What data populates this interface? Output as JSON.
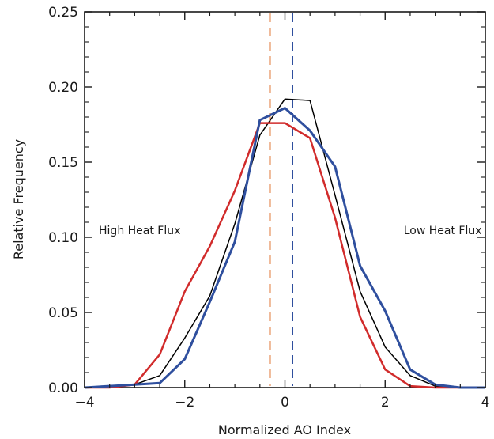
{
  "chart_data": {
    "type": "line",
    "title": "",
    "xlabel": "Normalized AO Index",
    "ylabel": "Relative Frequency",
    "xlim": [
      -4,
      4
    ],
    "ylim": [
      0,
      0.25
    ],
    "xticks": [
      -4,
      -2,
      0,
      2,
      4
    ],
    "xtick_labels": [
      "−4",
      "−2",
      "0",
      "2",
      "4"
    ],
    "yticks": [
      0.0,
      0.05,
      0.1,
      0.15,
      0.2,
      0.25
    ],
    "ytick_labels": [
      "0.00",
      "0.05",
      "0.10",
      "0.15",
      "0.20",
      "0.25"
    ],
    "grid": false,
    "x": [
      -4.0,
      -3.5,
      -3.0,
      -2.5,
      -2.0,
      -1.5,
      -1.0,
      -0.5,
      0.0,
      0.5,
      1.0,
      1.5,
      2.0,
      2.5,
      3.0,
      3.5,
      4.0
    ],
    "series": [
      {
        "color": "#000000",
        "stroke_width": 1.5,
        "values": [
          0.0,
          0.001,
          0.002,
          0.008,
          0.033,
          0.061,
          0.109,
          0.168,
          0.192,
          0.191,
          0.128,
          0.064,
          0.027,
          0.008,
          0.001,
          0.0,
          0.0
        ]
      },
      {
        "color": "#d12b2b",
        "stroke_width": 2.5,
        "values": [
          0.0,
          0.0,
          0.002,
          0.022,
          0.064,
          0.094,
          0.131,
          0.176,
          0.176,
          0.166,
          0.113,
          0.047,
          0.012,
          0.001,
          0.0,
          0.0,
          0.0
        ]
      },
      {
        "color": "#2f4f9e",
        "stroke_width": 3,
        "values": [
          0.0,
          0.001,
          0.002,
          0.003,
          0.019,
          0.057,
          0.097,
          0.178,
          0.186,
          0.171,
          0.147,
          0.081,
          0.051,
          0.012,
          0.002,
          0.0,
          0.0
        ]
      }
    ],
    "reference_lines": [
      {
        "x": -0.3,
        "color": "#e0793a",
        "style": "dashed"
      },
      {
        "x": 0.15,
        "color": "#2f4f9e",
        "style": "dashed"
      }
    ],
    "annotations": [
      {
        "text": "High Heat Flux",
        "x": -2.9,
        "y": 0.102
      },
      {
        "text": "Low Heat Flux",
        "x": 3.15,
        "y": 0.102
      }
    ]
  }
}
